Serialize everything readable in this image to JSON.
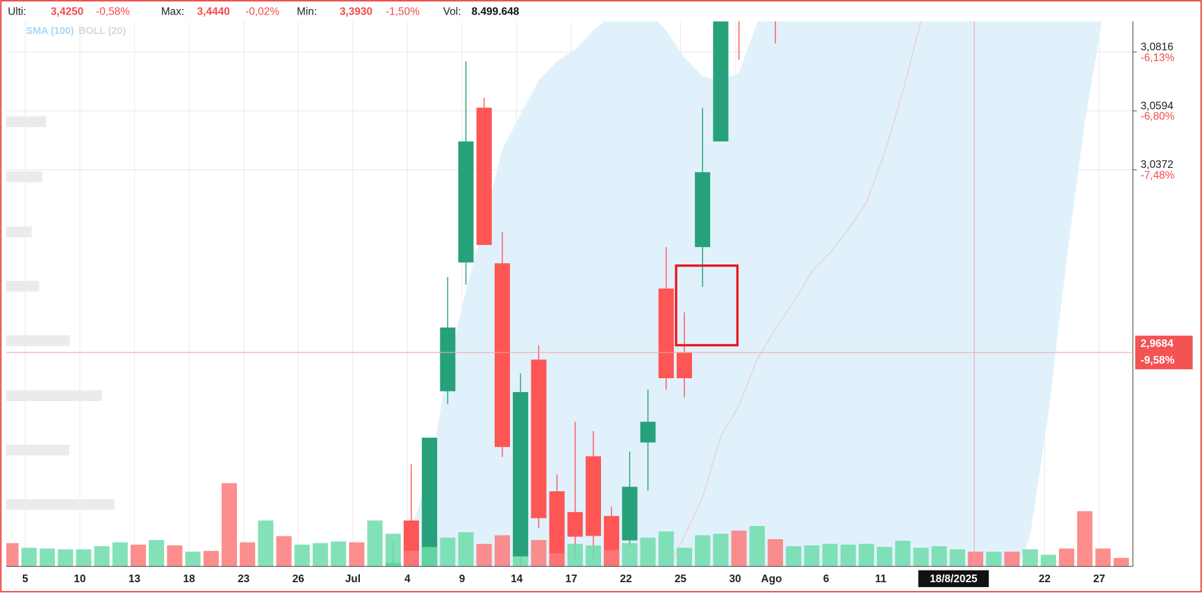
{
  "header": {
    "items": [
      {
        "label": "Ulti:",
        "value": "3,4250",
        "change": "-0,58%"
      },
      {
        "label": "Max:",
        "value": "3,4440",
        "change": "-0,02%"
      },
      {
        "label": "Min:",
        "value": "3,3930",
        "change": "-1,50%"
      }
    ],
    "volume_label": "Vol:",
    "volume": "8.499.648"
  },
  "chart_data": {
    "type": "candlestick",
    "legend": [
      {
        "name": "SMA (100)",
        "color": "#a9d8f3"
      },
      {
        "name": "BOLL (20)",
        "color": "#d8d8d8"
      }
    ],
    "categories": [
      null,
      "5",
      null,
      null,
      "10",
      null,
      null,
      "13",
      null,
      null,
      "18",
      null,
      null,
      "23",
      null,
      null,
      "26",
      null,
      null,
      "Jul",
      null,
      null,
      "4",
      null,
      null,
      "9",
      null,
      null,
      "14",
      null,
      null,
      "17",
      null,
      null,
      "22",
      null,
      null,
      "25",
      null,
      null,
      "30",
      null,
      "Ago",
      null,
      null,
      "6",
      null,
      null,
      "11",
      null,
      null,
      null,
      "18/8/2025",
      null,
      null,
      null,
      null,
      "22",
      null,
      null,
      "27",
      null
    ],
    "highlight_category": 52,
    "open": [
      null,
      null,
      null,
      null,
      null,
      null,
      null,
      null,
      null,
      null,
      null,
      null,
      null,
      null,
      null,
      null,
      null,
      null,
      null,
      null,
      null,
      2.886,
      2.9051,
      2.886,
      2.9538,
      3.0023,
      3.0606,
      3.002,
      2.8915,
      2.9657,
      2.9161,
      2.9083,
      2.9293,
      2.9068,
      2.8976,
      2.9345,
      2.9925,
      2.9683,
      3.0081,
      3.0479,
      3.105,
      null,
      3.105,
      null,
      null,
      null,
      null,
      null,
      null,
      null,
      null,
      null,
      null,
      null,
      null,
      null,
      null,
      null,
      null,
      null,
      null,
      null
    ],
    "high": [
      null,
      null,
      null,
      null,
      null,
      null,
      null,
      null,
      null,
      null,
      null,
      null,
      null,
      null,
      null,
      null,
      null,
      null,
      null,
      null,
      null,
      2.897,
      2.9264,
      2.9363,
      2.9968,
      3.0781,
      3.0643,
      3.0138,
      2.9605,
      2.9711,
      2.9224,
      2.9423,
      2.9388,
      2.9103,
      2.9311,
      2.9544,
      3.0081,
      2.9835,
      3.0606,
      3.1,
      3.106,
      null,
      3.106,
      null,
      null,
      null,
      null,
      null,
      null,
      null,
      null,
      null,
      null,
      null,
      null,
      null,
      null,
      null,
      null,
      null,
      null,
      null
    ],
    "low": [
      null,
      null,
      null,
      null,
      null,
      null,
      null,
      null,
      null,
      null,
      null,
      null,
      null,
      null,
      null,
      null,
      null,
      null,
      null,
      null,
      null,
      2.885,
      2.885,
      2.885,
      2.9489,
      2.9939,
      3.0089,
      2.929,
      2.885,
      2.9022,
      2.885,
      2.8907,
      2.8907,
      2.885,
      2.8953,
      2.9163,
      2.9544,
      2.9515,
      2.9931,
      3.0479,
      3.0787,
      null,
      3.0848,
      null,
      null,
      null,
      null,
      null,
      null,
      null,
      null,
      null,
      null,
      null,
      null,
      null,
      null,
      null,
      null,
      null,
      null,
      null
    ],
    "close": [
      null,
      null,
      null,
      null,
      null,
      null,
      null,
      null,
      null,
      null,
      null,
      null,
      null,
      null,
      null,
      null,
      null,
      null,
      null,
      null,
      null,
      2.8892,
      2.886,
      2.9363,
      2.9778,
      3.0479,
      3.0089,
      2.9328,
      2.9535,
      2.906,
      2.886,
      2.899,
      2.8993,
      2.886,
      2.9178,
      2.9423,
      2.9587,
      2.9587,
      3.0363,
      3.095,
      3.1,
      null,
      3.1,
      null,
      null,
      null,
      null,
      null,
      null,
      null,
      null,
      null,
      null,
      null,
      null,
      null,
      null,
      null,
      null,
      null,
      null,
      null
    ],
    "up_color": "#26a17a",
    "down_color": "#fe5555",
    "volume": [
      30,
      24,
      23,
      22,
      22,
      26,
      31,
      28,
      34,
      27,
      19,
      20,
      107,
      31,
      59,
      39,
      28,
      30,
      32,
      31,
      59,
      42,
      20,
      25,
      37,
      44,
      29,
      40,
      13,
      34,
      17,
      29,
      27,
      21,
      30,
      37,
      45,
      24,
      40,
      42,
      46,
      52,
      35,
      26,
      27,
      29,
      28,
      29,
      25,
      33,
      24,
      26,
      22,
      19,
      19,
      19,
      22,
      15,
      23,
      71,
      23,
      11
    ],
    "volume_colors": [
      "#fb7a7a",
      "#6ddcaa",
      "#6ddcaa",
      "#6ddcaa",
      "#6ddcaa",
      "#6ddcaa",
      "#6ddcaa",
      "#fb7a7a",
      "#6ddcaa",
      "#fb7a7a",
      "#6ddcaa",
      "#fb7a7a",
      "#fb7a7a",
      "#fb7a7a",
      "#6ddcaa",
      "#fb7a7a",
      "#6ddcaa",
      "#6ddcaa",
      "#6ddcaa",
      "#fb7a7a",
      "#6ddcaa",
      "#6ddcaa",
      "#fb7a7a",
      "#6ddcaa",
      "#6ddcaa",
      "#6ddcaa",
      "#fb7a7a",
      "#fb7a7a",
      "#6ddcaa",
      "#fb7a7a",
      "#fb7a7a",
      "#6ddcaa",
      "#6ddcaa",
      "#fb7a7a",
      "#6ddcaa",
      "#6ddcaa",
      "#6ddcaa",
      "#6ddcaa",
      "#6ddcaa",
      "#6ddcaa",
      "#fb7a7a",
      "#6ddcaa",
      "#fb7a7a",
      "#6ddcaa",
      "#6ddcaa",
      "#6ddcaa",
      "#6ddcaa",
      "#6ddcaa",
      "#6ddcaa",
      "#6ddcaa",
      "#6ddcaa",
      "#6ddcaa",
      "#6ddcaa",
      "#fb7a7a",
      "#6ddcaa",
      "#fb7a7a",
      "#6ddcaa",
      "#6ddcaa",
      "#fb7a7a",
      "#fb7a7a",
      "#fb7a7a",
      "#fb7a7a"
    ],
    "volume_ylim": [
      0,
      700
    ],
    "band": {
      "color": "#e1f1fc",
      "upper": [
        null,
        null,
        null,
        null,
        null,
        null,
        null,
        null,
        null,
        null,
        null,
        null,
        null,
        null,
        null,
        null,
        null,
        null,
        null,
        null,
        null,
        null,
        2.9022,
        2.9224,
        2.9628,
        2.9916,
        3.0176,
        3.045,
        3.058,
        3.0709,
        3.0781,
        3.0825,
        3.0897,
        3.0954,
        3.0983,
        3.0969,
        3.0897,
        3.0796,
        3.0724,
        3.0709,
        3.0738,
        3.0926,
        3.1012,
        3.1012,
        3.1012,
        3.1012,
        3.1012,
        3.1012,
        3.1012,
        3.1012,
        3.1012,
        3.1012,
        3.1012,
        3.1012,
        3.1012,
        3.1012,
        3.1012,
        3.1012,
        3.1012,
        3.1012,
        3.1012,
        null
      ],
      "lower": [
        null,
        null,
        null,
        null,
        null,
        null,
        null,
        null,
        null,
        null,
        null,
        null,
        null,
        null,
        null,
        null,
        null,
        null,
        null,
        null,
        null,
        null,
        2.882,
        2.882,
        2.882,
        2.882,
        2.882,
        2.882,
        2.882,
        2.882,
        2.882,
        2.882,
        2.882,
        2.882,
        2.882,
        2.882,
        2.882,
        2.882,
        2.882,
        2.882,
        2.882,
        2.882,
        2.882,
        2.882,
        2.882,
        2.882,
        2.882,
        2.882,
        2.882,
        2.882,
        2.882,
        2.882,
        2.882,
        2.882,
        2.882,
        2.882,
        2.8993,
        2.9455,
        3.0032,
        3.0551,
        3.0954,
        null
      ]
    },
    "line": {
      "color": "#e4dcdc",
      "values": [
        null,
        null,
        null,
        null,
        null,
        null,
        null,
        null,
        null,
        null,
        null,
        null,
        null,
        null,
        null,
        null,
        null,
        null,
        null,
        null,
        null,
        null,
        null,
        null,
        null,
        null,
        null,
        null,
        null,
        null,
        null,
        null,
        null,
        null,
        null,
        null,
        2.885,
        2.8993,
        2.9138,
        2.9368,
        2.9484,
        2.9657,
        2.9772,
        2.9873,
        2.9988,
        3.006,
        3.0147,
        3.0248,
        3.0435,
        3.0666,
        3.0931,
        3.1012,
        null,
        null,
        null,
        null,
        null,
        null,
        null,
        null,
        null,
        null
      ]
    },
    "ylim": [
      2.8878,
      3.0931
    ],
    "yticks": [
      {
        "value": 3.0816,
        "label": "3,0816"
      },
      {
        "value": 3.0594,
        "label": "3,0594"
      },
      {
        "value": 3.0372,
        "label": "3,0372"
      }
    ],
    "ytick_changes": [
      "-6,13%",
      "-6,80%",
      "-7,48%"
    ],
    "crosshair": {
      "value": 2.9684,
      "label": "2,9684",
      "change": "-9,58%"
    },
    "grid": true
  }
}
